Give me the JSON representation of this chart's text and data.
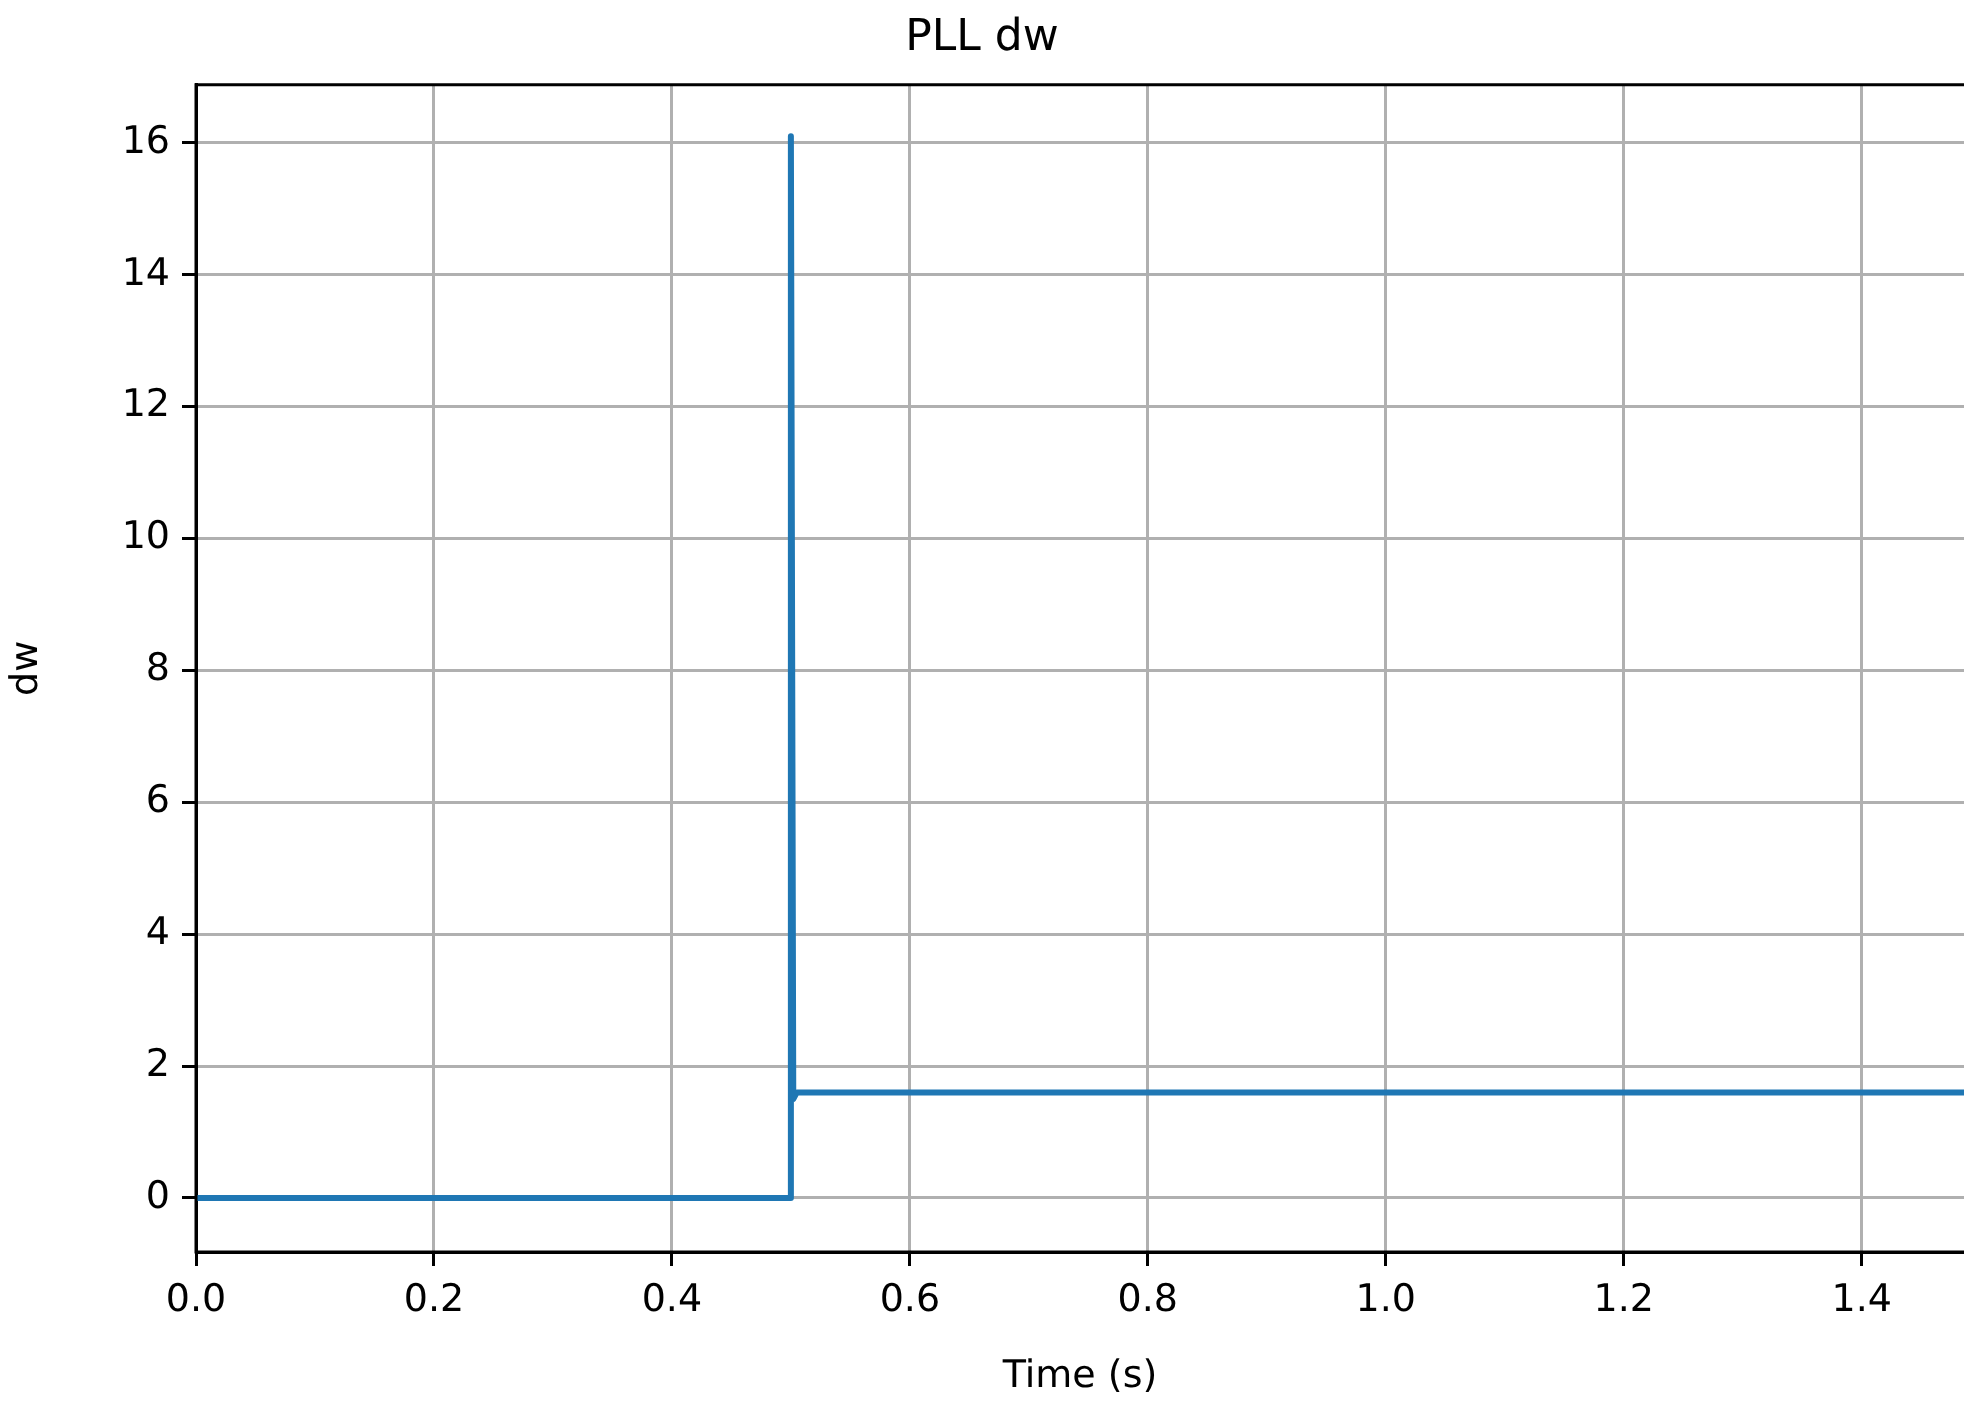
{
  "chart_data": {
    "type": "line",
    "title": "PLL dw",
    "xlabel": "Time (s)",
    "ylabel": "dw",
    "x": [
      0,
      0.5,
      0.5,
      0.502,
      0.505,
      1.486
    ],
    "series": [
      {
        "color": "#1f77b4",
        "values": [
          0,
          0,
          16.1,
          1.5,
          1.6,
          1.6
        ]
      }
    ],
    "xlim": [
      0,
      1.486
    ],
    "xticks": [
      {
        "value": 0,
        "label": "0.0"
      },
      {
        "value": 0.2,
        "label": "0.2"
      },
      {
        "value": 0.4,
        "label": "0.4"
      },
      {
        "value": 0.6,
        "label": "0.6"
      },
      {
        "value": 0.8,
        "label": "0.8"
      },
      {
        "value": 1.0,
        "label": "1.0"
      },
      {
        "value": 1.2,
        "label": "1.2"
      },
      {
        "value": 1.4,
        "label": "1.4"
      }
    ],
    "ylim": [
      -0.82,
      16.88
    ],
    "yticks": [
      0,
      2,
      4,
      6,
      8,
      10,
      12,
      14,
      16
    ],
    "grid": true,
    "legend": false,
    "marker": "none",
    "line_style": "solid"
  }
}
